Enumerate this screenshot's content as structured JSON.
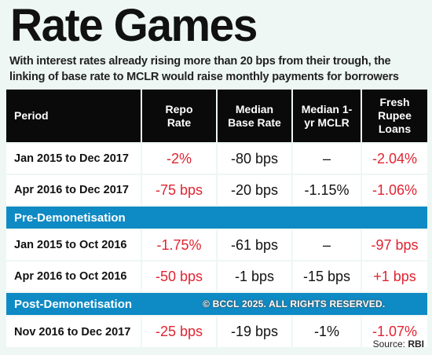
{
  "title": "Rate Games",
  "subtitle": "With interest rates already rising more than 20 bps from their trough, the linking of base rate to MCLR would raise monthly payments for borrowers",
  "watermark": "© BCCL 2025. ALL RIGHTS RESERVED.",
  "source_label": "Source:",
  "source_value": "RBI",
  "chart_data": {
    "type": "table",
    "columns": [
      "Period",
      "Repo Rate",
      "Median Base Rate",
      "Median 1-yr MCLR",
      "Fresh Rupee Loans"
    ],
    "sections": [
      {
        "name": "",
        "rows": [
          {
            "period": "Jan 2015 to Dec 2017",
            "repo": "-2%",
            "base": "-80 bps",
            "mclr": "–",
            "fresh": "-2.04%"
          },
          {
            "period": "Apr 2016 to Dec 2017",
            "repo": "-75 bps",
            "base": "-20 bps",
            "mclr": "-1.15%",
            "fresh": "-1.06%"
          }
        ]
      },
      {
        "name": "Pre-Demonetisation",
        "rows": [
          {
            "period": "Jan 2015 to Oct 2016",
            "repo": "-1.75%",
            "base": "-61 bps",
            "mclr": "–",
            "fresh": "-97 bps"
          },
          {
            "period": "Apr 2016 to Oct 2016",
            "repo": "-50 bps",
            "base": "-1 bps",
            "mclr": "-15 bps",
            "fresh": "+1 bps"
          }
        ]
      },
      {
        "name": "Post-Demonetisation",
        "rows": [
          {
            "period": "Nov 2016 to Dec 2017",
            "repo": "-25 bps",
            "base": "-19 bps",
            "mclr": "-1%",
            "fresh": "-1.07%"
          }
        ]
      }
    ]
  }
}
